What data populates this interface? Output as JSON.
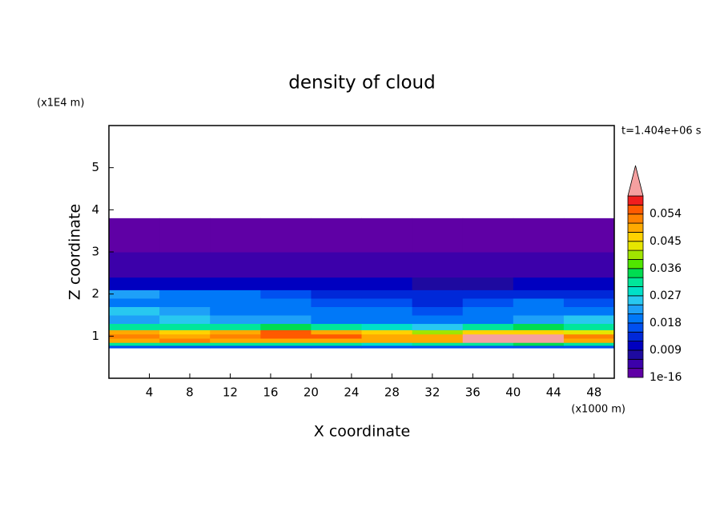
{
  "chart_data": {
    "type": "contour",
    "title": "density of cloud",
    "x_label": "X coordinate",
    "x_unit": "(x1000 m)",
    "y_label": "Z coordinate",
    "y_unit": "(x1E4 m)",
    "time_label": "t=1.404e+06 s",
    "xlim": [
      0,
      50
    ],
    "xticks": [
      4,
      8,
      12,
      16,
      20,
      24,
      28,
      32,
      36,
      40,
      44,
      48
    ],
    "ylim": [
      0,
      6
    ],
    "yticks": [
      1,
      2,
      3,
      4,
      5
    ],
    "x_edges": [
      0,
      5,
      10,
      15,
      20,
      25,
      30,
      35,
      40,
      45,
      50
    ],
    "z_edges": [
      0.72,
      0.78,
      0.85,
      0.95,
      1.05,
      1.15,
      1.3,
      1.5,
      1.7,
      1.9,
      2.1,
      2.4,
      3.0,
      3.8
    ],
    "values": [
      [
        0.015,
        0.015,
        0.015,
        0.015,
        0.015,
        0.015,
        0.015,
        0.015,
        0.015,
        0.015
      ],
      [
        0.03,
        0.03,
        0.032,
        0.03,
        0.03,
        0.028,
        0.03,
        0.032,
        0.034,
        0.03
      ],
      [
        0.05,
        0.052,
        0.05,
        0.05,
        0.05,
        0.048,
        0.05,
        0.062,
        0.062,
        0.05
      ],
      [
        0.052,
        0.05,
        0.052,
        0.056,
        0.054,
        0.05,
        0.05,
        0.062,
        0.062,
        0.052
      ],
      [
        0.05,
        0.045,
        0.05,
        0.055,
        0.05,
        0.045,
        0.04,
        0.045,
        0.045,
        0.042
      ],
      [
        0.03,
        0.03,
        0.032,
        0.034,
        0.03,
        0.028,
        0.026,
        0.03,
        0.035,
        0.032
      ],
      [
        0.022,
        0.024,
        0.022,
        0.022,
        0.02,
        0.02,
        0.018,
        0.02,
        0.022,
        0.024
      ],
      [
        0.025,
        0.022,
        0.02,
        0.02,
        0.018,
        0.018,
        0.016,
        0.018,
        0.02,
        0.02
      ],
      [
        0.018,
        0.02,
        0.018,
        0.018,
        0.016,
        0.015,
        0.014,
        0.016,
        0.018,
        0.016
      ],
      [
        0.022,
        0.02,
        0.018,
        0.015,
        0.014,
        0.013,
        0.012,
        0.012,
        0.012,
        0.014
      ],
      [
        0.01,
        0.011,
        0.01,
        0.01,
        0.009,
        0.009,
        0.008,
        0.008,
        0.009,
        0.01
      ],
      [
        0.004,
        0.004,
        0.004,
        0.004,
        0.004,
        0.004,
        0.004,
        0.004,
        0.004,
        0.004
      ],
      [
        0.001,
        0.001,
        0.001,
        0.001,
        0.001,
        0.001,
        0.001,
        0.001,
        0.001,
        0.001
      ]
    ],
    "colorbar": {
      "levels": [
        1e-16,
        0.003,
        0.006,
        0.009,
        0.012,
        0.015,
        0.018,
        0.021,
        0.024,
        0.027,
        0.03,
        0.033,
        0.036,
        0.039,
        0.042,
        0.045,
        0.048,
        0.051,
        0.054,
        0.057,
        0.06
      ],
      "colors": [
        "#5f00a5",
        "#3c00aa",
        "#1e0aa0",
        "#0000c0",
        "#0028d8",
        "#0050f0",
        "#0078f8",
        "#1ea0f8",
        "#28c8f0",
        "#00e0c8",
        "#00e69a",
        "#00dc50",
        "#50e600",
        "#a0e600",
        "#e6e600",
        "#ffd200",
        "#ffaa00",
        "#ff8200",
        "#ff5a00",
        "#f01e1e"
      ],
      "over_color": "#f5a0a0",
      "ticks": [
        1e-16,
        0.009,
        0.018,
        0.027,
        0.036,
        0.045,
        0.054
      ]
    }
  }
}
